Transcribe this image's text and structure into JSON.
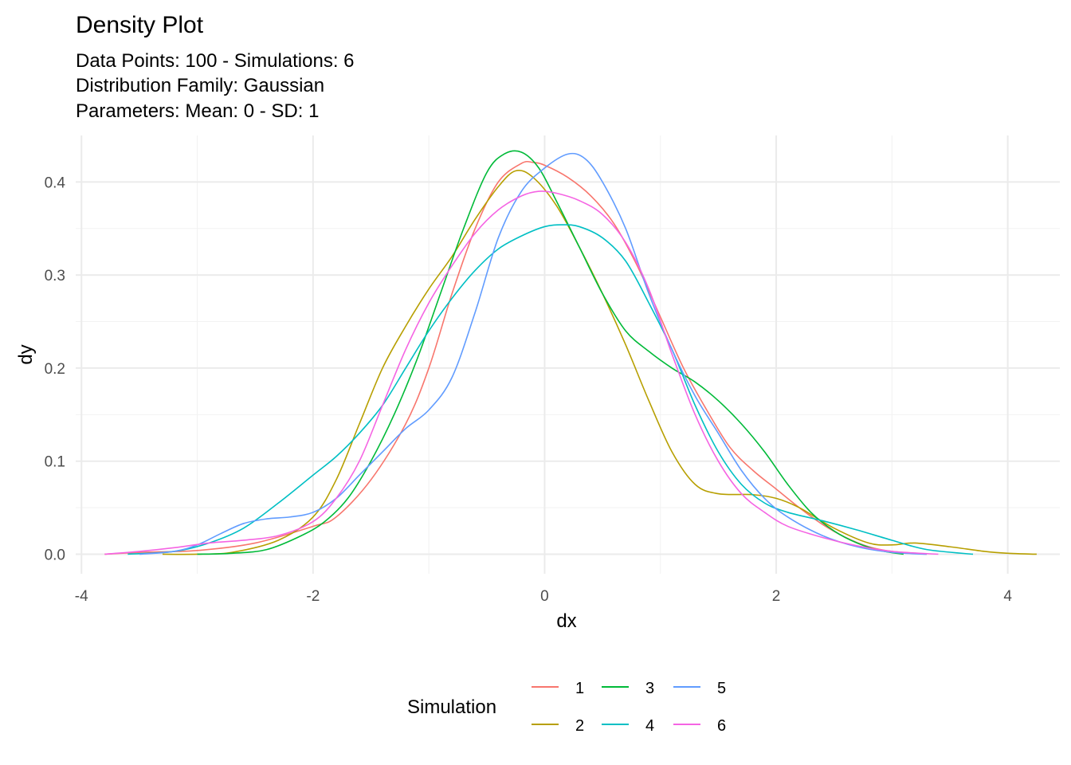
{
  "chart_data": {
    "type": "line",
    "title": "Density Plot",
    "subtitle_lines": [
      "Data Points: 100 - Simulations: 6",
      "Distribution Family: Gaussian",
      "Parameters: Mean: 0 - SD: 1"
    ],
    "xlabel": "dx",
    "ylabel": "dy",
    "xlim": [
      -4.05,
      4.45
    ],
    "ylim": [
      -0.021,
      0.45
    ],
    "x_ticks": [
      -4,
      -2,
      0,
      2,
      4
    ],
    "x_tick_labels": [
      "-4",
      "-2",
      "0",
      "2",
      "4"
    ],
    "y_ticks": [
      0.0,
      0.1,
      0.2,
      0.3,
      0.4
    ],
    "y_tick_labels": [
      "0.0",
      "0.1",
      "0.2",
      "0.3",
      "0.4"
    ],
    "grid": true,
    "legend": {
      "title": "Simulation",
      "position": "bottom"
    },
    "series": [
      {
        "name": "1",
        "color": "#F8766D",
        "points": [
          [
            -3.8,
            0.0
          ],
          [
            -3.5,
            0.002
          ],
          [
            -3.0,
            0.004
          ],
          [
            -2.5,
            0.012
          ],
          [
            -2.0,
            0.03
          ],
          [
            -1.8,
            0.04
          ],
          [
            -1.5,
            0.08
          ],
          [
            -1.2,
            0.14
          ],
          [
            -1.0,
            0.2
          ],
          [
            -0.8,
            0.28
          ],
          [
            -0.6,
            0.35
          ],
          [
            -0.4,
            0.4
          ],
          [
            -0.2,
            0.42
          ],
          [
            -0.1,
            0.421
          ],
          [
            0.0,
            0.418
          ],
          [
            0.2,
            0.405
          ],
          [
            0.4,
            0.385
          ],
          [
            0.6,
            0.355
          ],
          [
            0.8,
            0.31
          ],
          [
            1.0,
            0.255
          ],
          [
            1.2,
            0.2
          ],
          [
            1.4,
            0.155
          ],
          [
            1.6,
            0.115
          ],
          [
            1.8,
            0.09
          ],
          [
            2.0,
            0.07
          ],
          [
            2.2,
            0.05
          ],
          [
            2.4,
            0.032
          ],
          [
            2.6,
            0.018
          ],
          [
            2.8,
            0.008
          ],
          [
            3.0,
            0.003
          ],
          [
            3.3,
            0.0
          ]
        ]
      },
      {
        "name": "2",
        "color": "#B79F00",
        "points": [
          [
            -3.3,
            0.0
          ],
          [
            -3.0,
            0.0
          ],
          [
            -2.7,
            0.002
          ],
          [
            -2.3,
            0.015
          ],
          [
            -2.0,
            0.04
          ],
          [
            -1.8,
            0.08
          ],
          [
            -1.6,
            0.14
          ],
          [
            -1.4,
            0.2
          ],
          [
            -1.2,
            0.245
          ],
          [
            -1.0,
            0.285
          ],
          [
            -0.8,
            0.32
          ],
          [
            -0.6,
            0.36
          ],
          [
            -0.4,
            0.395
          ],
          [
            -0.25,
            0.412
          ],
          [
            -0.1,
            0.405
          ],
          [
            0.1,
            0.375
          ],
          [
            0.3,
            0.33
          ],
          [
            0.5,
            0.28
          ],
          [
            0.7,
            0.225
          ],
          [
            0.9,
            0.165
          ],
          [
            1.1,
            0.11
          ],
          [
            1.3,
            0.075
          ],
          [
            1.5,
            0.065
          ],
          [
            1.8,
            0.064
          ],
          [
            2.0,
            0.06
          ],
          [
            2.2,
            0.05
          ],
          [
            2.5,
            0.028
          ],
          [
            2.8,
            0.012
          ],
          [
            3.0,
            0.01
          ],
          [
            3.2,
            0.012
          ],
          [
            3.5,
            0.008
          ],
          [
            3.8,
            0.003
          ],
          [
            4.0,
            0.001
          ],
          [
            4.25,
            0.0
          ]
        ]
      },
      {
        "name": "3",
        "color": "#00BA38",
        "points": [
          [
            -3.0,
            0.0
          ],
          [
            -2.7,
            0.001
          ],
          [
            -2.4,
            0.005
          ],
          [
            -2.1,
            0.02
          ],
          [
            -1.9,
            0.035
          ],
          [
            -1.7,
            0.06
          ],
          [
            -1.5,
            0.1
          ],
          [
            -1.3,
            0.15
          ],
          [
            -1.1,
            0.21
          ],
          [
            -0.9,
            0.28
          ],
          [
            -0.7,
            0.35
          ],
          [
            -0.5,
            0.41
          ],
          [
            -0.35,
            0.43
          ],
          [
            -0.2,
            0.432
          ],
          [
            -0.05,
            0.415
          ],
          [
            0.1,
            0.38
          ],
          [
            0.3,
            0.33
          ],
          [
            0.5,
            0.28
          ],
          [
            0.7,
            0.24
          ],
          [
            0.9,
            0.218
          ],
          [
            1.1,
            0.2
          ],
          [
            1.3,
            0.185
          ],
          [
            1.5,
            0.165
          ],
          [
            1.7,
            0.14
          ],
          [
            1.9,
            0.11
          ],
          [
            2.1,
            0.075
          ],
          [
            2.3,
            0.045
          ],
          [
            2.5,
            0.025
          ],
          [
            2.7,
            0.012
          ],
          [
            2.9,
            0.004
          ],
          [
            3.1,
            0.0
          ]
        ]
      },
      {
        "name": "4",
        "color": "#00BFC4",
        "points": [
          [
            -3.6,
            0.0
          ],
          [
            -3.2,
            0.003
          ],
          [
            -2.9,
            0.012
          ],
          [
            -2.6,
            0.028
          ],
          [
            -2.3,
            0.055
          ],
          [
            -2.0,
            0.085
          ],
          [
            -1.8,
            0.105
          ],
          [
            -1.6,
            0.13
          ],
          [
            -1.4,
            0.16
          ],
          [
            -1.2,
            0.2
          ],
          [
            -1.0,
            0.24
          ],
          [
            -0.8,
            0.275
          ],
          [
            -0.6,
            0.305
          ],
          [
            -0.4,
            0.328
          ],
          [
            -0.2,
            0.342
          ],
          [
            0.0,
            0.352
          ],
          [
            0.15,
            0.354
          ],
          [
            0.3,
            0.352
          ],
          [
            0.5,
            0.34
          ],
          [
            0.7,
            0.315
          ],
          [
            0.9,
            0.27
          ],
          [
            1.1,
            0.22
          ],
          [
            1.3,
            0.16
          ],
          [
            1.5,
            0.11
          ],
          [
            1.7,
            0.075
          ],
          [
            1.9,
            0.055
          ],
          [
            2.1,
            0.045
          ],
          [
            2.4,
            0.036
          ],
          [
            2.7,
            0.026
          ],
          [
            3.0,
            0.015
          ],
          [
            3.3,
            0.005
          ],
          [
            3.7,
            0.0
          ]
        ]
      },
      {
        "name": "5",
        "color": "#619CFF",
        "points": [
          [
            -3.5,
            0.0
          ],
          [
            -3.2,
            0.003
          ],
          [
            -3.0,
            0.01
          ],
          [
            -2.8,
            0.022
          ],
          [
            -2.6,
            0.033
          ],
          [
            -2.4,
            0.038
          ],
          [
            -2.2,
            0.04
          ],
          [
            -2.0,
            0.045
          ],
          [
            -1.8,
            0.06
          ],
          [
            -1.6,
            0.085
          ],
          [
            -1.4,
            0.11
          ],
          [
            -1.2,
            0.135
          ],
          [
            -1.0,
            0.155
          ],
          [
            -0.8,
            0.19
          ],
          [
            -0.6,
            0.26
          ],
          [
            -0.4,
            0.34
          ],
          [
            -0.2,
            0.39
          ],
          [
            0.0,
            0.415
          ],
          [
            0.2,
            0.43
          ],
          [
            0.35,
            0.425
          ],
          [
            0.5,
            0.4
          ],
          [
            0.7,
            0.35
          ],
          [
            0.9,
            0.28
          ],
          [
            1.1,
            0.22
          ],
          [
            1.3,
            0.17
          ],
          [
            1.5,
            0.13
          ],
          [
            1.7,
            0.09
          ],
          [
            1.9,
            0.06
          ],
          [
            2.1,
            0.04
          ],
          [
            2.4,
            0.02
          ],
          [
            2.7,
            0.008
          ],
          [
            3.0,
            0.002
          ],
          [
            3.3,
            0.0
          ]
        ]
      },
      {
        "name": "6",
        "color": "#F564E3",
        "points": [
          [
            -3.8,
            0.0
          ],
          [
            -3.5,
            0.003
          ],
          [
            -3.2,
            0.007
          ],
          [
            -2.9,
            0.012
          ],
          [
            -2.6,
            0.015
          ],
          [
            -2.3,
            0.02
          ],
          [
            -2.0,
            0.035
          ],
          [
            -1.8,
            0.06
          ],
          [
            -1.6,
            0.1
          ],
          [
            -1.4,
            0.16
          ],
          [
            -1.2,
            0.22
          ],
          [
            -1.0,
            0.27
          ],
          [
            -0.8,
            0.31
          ],
          [
            -0.6,
            0.345
          ],
          [
            -0.4,
            0.37
          ],
          [
            -0.2,
            0.385
          ],
          [
            -0.05,
            0.39
          ],
          [
            0.1,
            0.388
          ],
          [
            0.3,
            0.38
          ],
          [
            0.5,
            0.365
          ],
          [
            0.7,
            0.335
          ],
          [
            0.9,
            0.285
          ],
          [
            1.1,
            0.215
          ],
          [
            1.3,
            0.15
          ],
          [
            1.5,
            0.1
          ],
          [
            1.7,
            0.065
          ],
          [
            1.9,
            0.045
          ],
          [
            2.1,
            0.03
          ],
          [
            2.4,
            0.018
          ],
          [
            2.7,
            0.009
          ],
          [
            3.0,
            0.003
          ],
          [
            3.4,
            0.0
          ]
        ]
      }
    ]
  }
}
